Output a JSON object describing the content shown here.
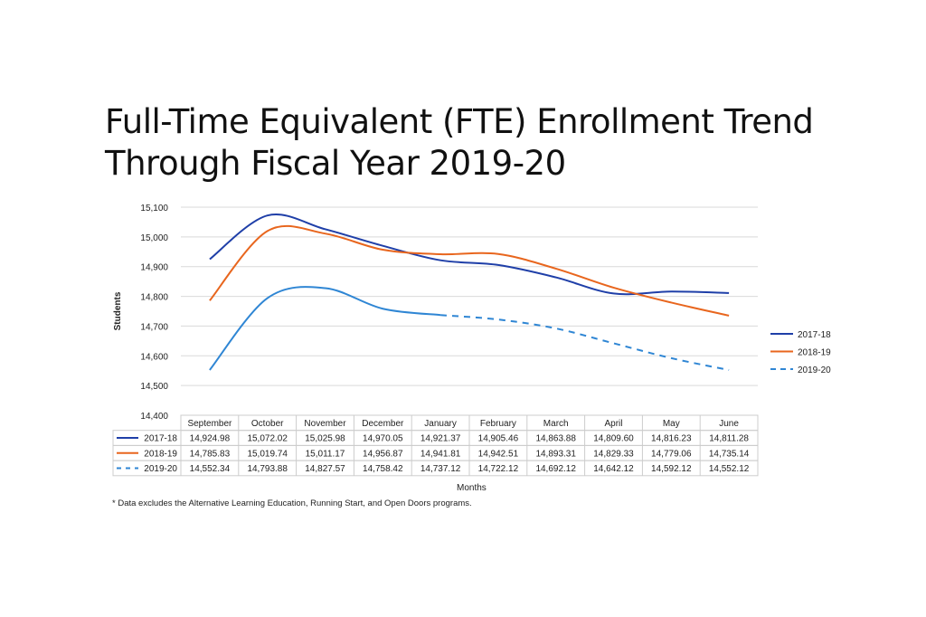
{
  "chart_data": {
    "type": "line",
    "title": "Full-Time Equivalent (FTE) Enrollment Trend Through Fiscal Year 2019-20",
    "title_lines": [
      "Full-Time Equivalent (FTE) Enrollment Trend",
      "Through Fiscal Year 2019-20"
    ],
    "xlabel": "Months",
    "ylabel": "Students",
    "ylim": [
      14400,
      15100
    ],
    "yticks": [
      "14,400",
      "14,500",
      "14,600",
      "14,700",
      "14,800",
      "14,900",
      "15,000",
      "15,100"
    ],
    "categories": [
      "September",
      "October",
      "November",
      "December",
      "January",
      "February",
      "March",
      "April",
      "May",
      "June"
    ],
    "series": [
      {
        "name": "2017-18",
        "color": "#1f3fa8",
        "dash": false,
        "values": [
          14924.98,
          15072.02,
          15025.98,
          14970.05,
          14921.37,
          14905.46,
          14863.88,
          14809.6,
          14816.23,
          14811.28
        ],
        "labels": [
          "14,924.98",
          "15,072.02",
          "15,025.98",
          "14,970.05",
          "14,921.37",
          "14,905.46",
          "14,863.88",
          "14,809.60",
          "14,816.23",
          "14,811.28"
        ]
      },
      {
        "name": "2018-19",
        "color": "#e8661e",
        "dash": false,
        "values": [
          14785.83,
          15019.74,
          15011.17,
          14956.87,
          14941.81,
          14942.51,
          14893.31,
          14829.33,
          14779.06,
          14735.14
        ],
        "labels": [
          "14,785.83",
          "15,019.74",
          "15,011.17",
          "14,956.87",
          "14,941.81",
          "14,942.51",
          "14,893.31",
          "14,829.33",
          "14,779.06",
          "14,735.14"
        ]
      },
      {
        "name": "2019-20",
        "color": "#2f86d4",
        "dash": true,
        "actual_through": "January",
        "values": [
          14552.34,
          14793.88,
          14827.57,
          14758.42,
          14737.12,
          14722.12,
          14692.12,
          14642.12,
          14592.12,
          14552.12
        ],
        "labels": [
          "14,552.34",
          "14,793.88",
          "14,827.57",
          "14,758.42",
          "14,737.12",
          "14,722.12",
          "14,692.12",
          "14,642.12",
          "14,592.12",
          "14,552.12"
        ]
      }
    ],
    "grid": true,
    "legend": "right"
  },
  "footnote": "* Data excludes the Alternative Learning Education, Running Start, and Open Doors programs."
}
